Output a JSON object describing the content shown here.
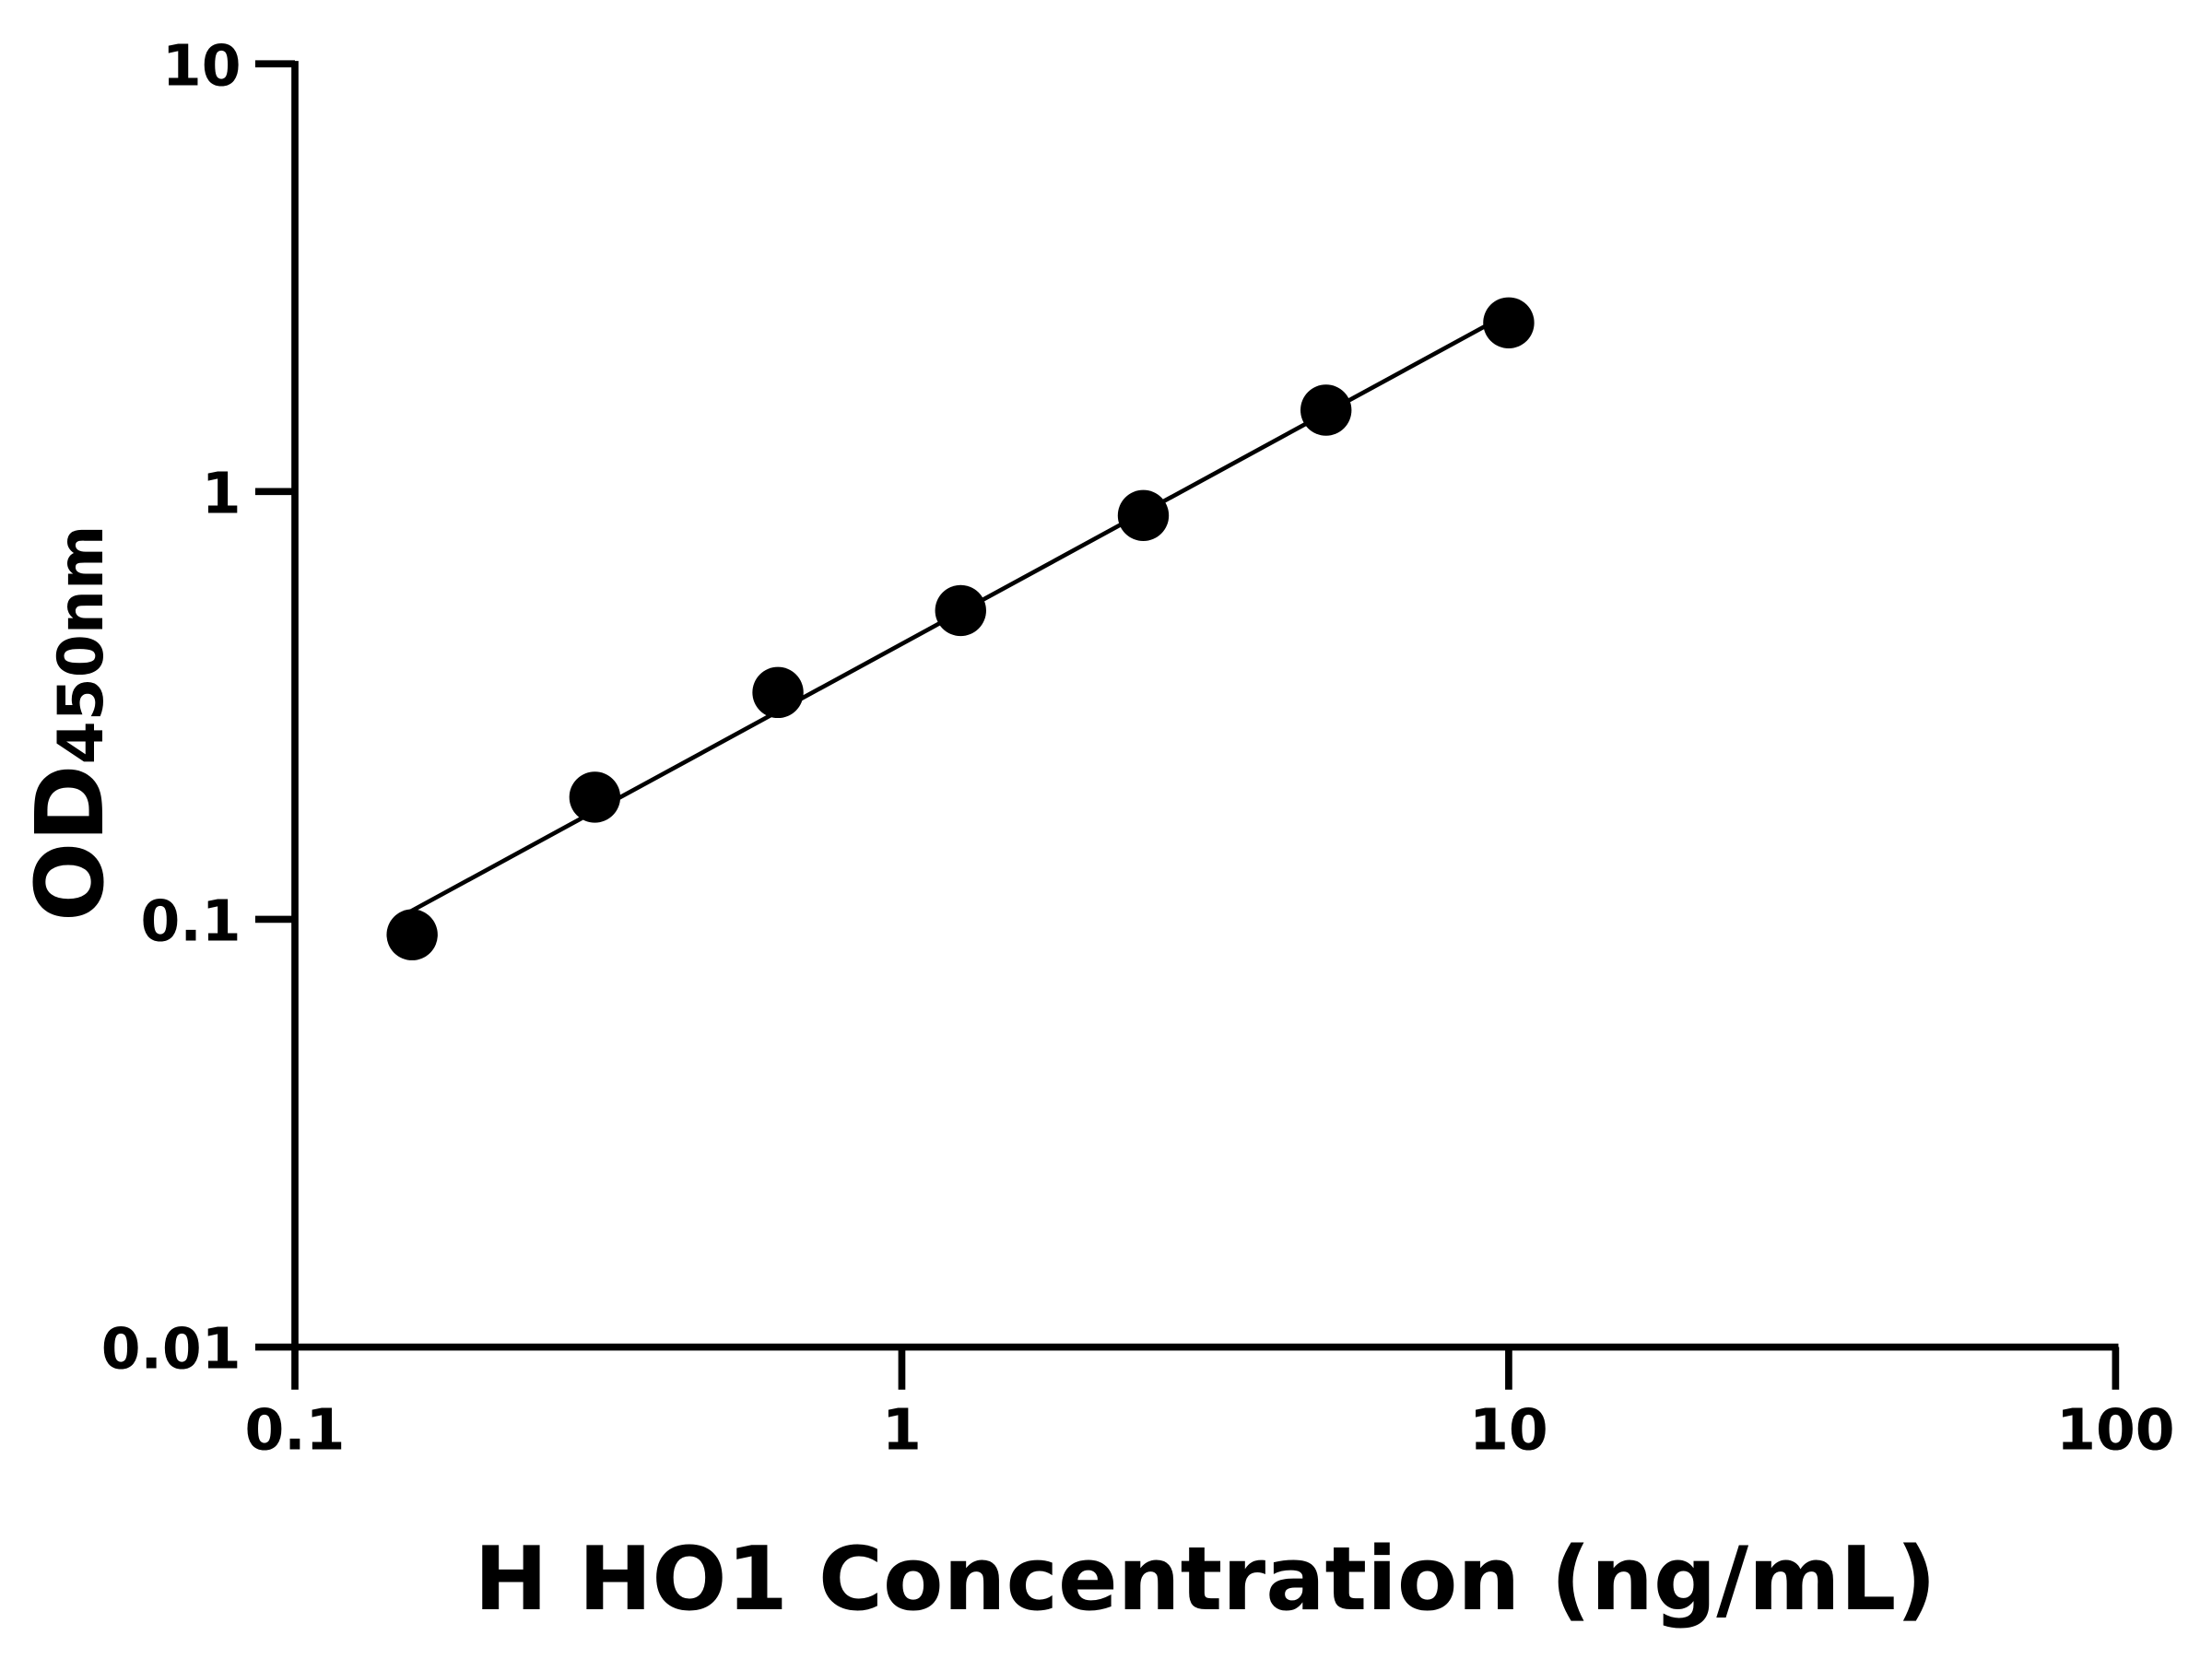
{
  "chart_data": {
    "type": "scatter",
    "title": "",
    "xlabel": "H HO1 Concentration (ng/mL)",
    "ylabel_main": "OD",
    "ylabel_sub": "450nm",
    "x_scale": "log",
    "y_scale": "log",
    "xlim": [
      0.1,
      100
    ],
    "ylim": [
      0.01,
      10
    ],
    "x_ticks": [
      0.1,
      1,
      10,
      100
    ],
    "x_tick_labels": [
      "0.1",
      "1",
      "10",
      "100"
    ],
    "y_ticks": [
      0.01,
      0.1,
      1,
      10
    ],
    "y_tick_labels": [
      "0.01",
      "0.1",
      "1",
      "10"
    ],
    "grid": false,
    "fit_line": true,
    "marker_color": "#000000",
    "line_color": "#000000",
    "series": [
      {
        "x": [
          0.156,
          0.312,
          0.625,
          1.25,
          2.5,
          5,
          10
        ],
        "y": [
          0.092,
          0.193,
          0.339,
          0.527,
          0.879,
          1.55,
          2.48
        ]
      }
    ]
  }
}
